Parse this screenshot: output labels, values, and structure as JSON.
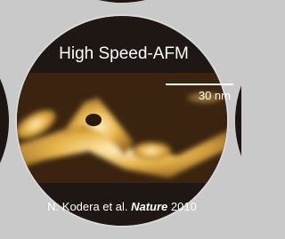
{
  "badge": {
    "title": "High Speed-AFM",
    "scale_bar": "30 nm",
    "citation": {
      "authors": "N. Kodera et al.",
      "journal": "Nature",
      "year": "2010"
    }
  }
}
